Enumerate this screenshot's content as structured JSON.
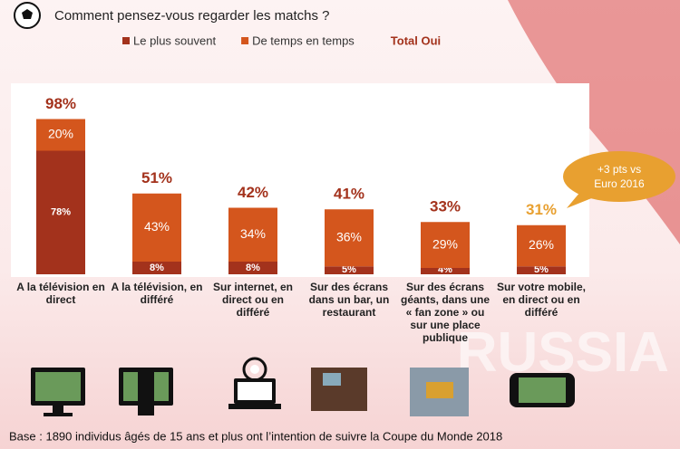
{
  "chart_data": {
    "type": "stacked-bar",
    "title": "Comment pensez-vous regarder les matchs ?",
    "categories": [
      "A la télévision en direct",
      "A la télévision, en différé",
      "Sur internet, en direct ou en différé",
      "Sur des écrans dans un bar, un restaurant",
      "Sur des écrans géants, dans une « fan zone »  ou sur une place publique",
      "Sur votre mobile, en direct ou en différé"
    ],
    "series": [
      {
        "name": "Le plus souvent",
        "color": "#a3321c",
        "values": [
          78,
          8,
          8,
          5,
          4,
          5
        ],
        "value_labels": [
          "78%",
          "8%",
          "8%",
          "5%",
          "4%",
          "5%"
        ]
      },
      {
        "name": "De temps en temps",
        "color": "#d4561d",
        "values": [
          20,
          43,
          34,
          36,
          29,
          26
        ],
        "value_labels": [
          "20%",
          "43%",
          "34%",
          "36%",
          "29%",
          "26%"
        ]
      }
    ],
    "totals": {
      "name": "Total Oui",
      "color": "#a3321c",
      "values": [
        98,
        51,
        42,
        41,
        33,
        31
      ],
      "value_labels": [
        "98%",
        "51%",
        "42%",
        "41%",
        "33%",
        "31%"
      ],
      "colors": [
        "#a3321c",
        "#a3321c",
        "#a3321c",
        "#a3321c",
        "#a3321c",
        "#e8a030"
      ]
    },
    "ylim": [
      0,
      100
    ],
    "annotation": {
      "lines": [
        "+3 pts vs",
        "Euro 2016"
      ],
      "color": "#e8a030"
    },
    "footnote": "Base : 1890 individus âgés de 15 ans et plus ont l’intention de suivre la Coupe du Monde 2018"
  }
}
